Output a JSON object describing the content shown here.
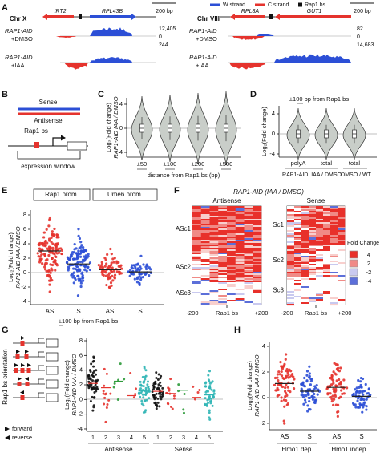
{
  "panel_a": {
    "label": "A",
    "legend": [
      "W strand",
      "C strand",
      "Rap1 bs"
    ],
    "left": {
      "chromosome": "Chr X",
      "genes": [
        "IRT2",
        "RPL43B"
      ],
      "scale_bar": "200 bp",
      "tracks": [
        {
          "strain": "RAP1-AID",
          "condition": "+DMSO"
        },
        {
          "strain": "RAP1-AID",
          "condition": "+IAA"
        }
      ],
      "scale": [
        "12,405",
        "0",
        "244"
      ]
    },
    "right": {
      "chromosome": "Chr VIII",
      "genes": [
        "RPL8A",
        "GUT1"
      ],
      "scale_bar": "200 bp",
      "tracks": [
        {
          "strain": "RAP1-AID",
          "condition": "+DMSO"
        },
        {
          "strain": "RAP1-AID",
          "condition": "+IAA"
        }
      ],
      "scale": [
        "82",
        "0",
        "14,683"
      ]
    }
  },
  "panel_b": {
    "label": "B",
    "sense": "Sense",
    "antisense": "Antisense",
    "site": "Rap1 bs",
    "window": "expression window"
  },
  "panel_c": {
    "label": "C",
    "y_label": [
      "Log₂(Fold change)",
      "RAP1-AID IAA / DMSO"
    ],
    "yticks": [
      "4",
      "0",
      "-4"
    ],
    "categories": [
      "±50",
      "±100",
      "±200",
      "±500"
    ],
    "x_label": "distance from Rap1 bs (bp)"
  },
  "panel_d": {
    "label": "D",
    "title": "±100 bp from Rap1 bs",
    "y_label": [
      "Log₂(Fold change)"
    ],
    "yticks": [
      "4",
      "0",
      "-4"
    ],
    "categories": [
      "polyA",
      "total",
      "total"
    ],
    "groups": [
      "RAP1-AID: IAA / DMSO",
      "DMSO / WT"
    ]
  },
  "panel_e": {
    "label": "E",
    "groups": [
      "Rap1 prom.",
      "Ume6 prom."
    ],
    "y_label": [
      "Log₂(Fold change)",
      "RAP1-AID IAA / DMSO"
    ],
    "yticks": [
      "8",
      "6",
      "4",
      "2",
      "0",
      "-2",
      "-4"
    ],
    "categories": [
      "AS",
      "S",
      "AS",
      "S"
    ],
    "x_label": "±100 bp from Rap1 bs"
  },
  "panel_f": {
    "label": "F",
    "title": "RAP1-AID (IAA / DMSO)",
    "columns": [
      "Antisense",
      "Sense"
    ],
    "clusters_antisense": [
      "ASc1",
      "ASc2",
      "ASc3"
    ],
    "clusters_sense": [
      "Sc1",
      "Sc2",
      "Sc3"
    ],
    "x_labels": [
      "-200",
      "Rap1 bs",
      "+200"
    ],
    "legend_title": "Fold Change",
    "legend": [
      "4",
      "2",
      "-2",
      "-4"
    ]
  },
  "panel_g": {
    "label": "G",
    "orientation_label": "Rap1 bs orientation",
    "forward": "forward",
    "reverse": "reverse",
    "y_label": [
      "Log₂(Fold change)",
      "RAP1-AID IAA / DMSO"
    ],
    "yticks": [
      "8",
      "6",
      "4",
      "2",
      "0",
      "-2",
      "-4"
    ],
    "categories": [
      "1",
      "2",
      "3",
      "4",
      "5"
    ],
    "groups": [
      "Antisense",
      "Sense"
    ]
  },
  "panel_h": {
    "label": "H",
    "y_label": [
      "Log₂(Fold change)",
      "RAP1-AID IAA / DMSO"
    ],
    "yticks": [
      "4",
      "2",
      "0",
      "-2"
    ],
    "categories": [
      "AS",
      "S",
      "AS",
      "S"
    ],
    "groups": [
      "Hmo1 dep.",
      "Hmo1 indep."
    ]
  }
}
